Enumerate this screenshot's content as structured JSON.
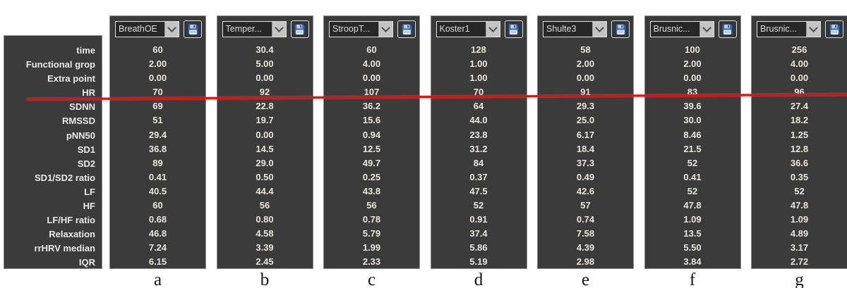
{
  "rows": [
    "time",
    "Functional grop",
    "Extra point",
    "HR",
    "SDNN",
    "RMSSD",
    "pNN50",
    "SD1",
    "SD2",
    "SD1/SD2 ratio",
    "LF",
    "HF",
    "LF/HF ratio",
    "Relaxation",
    "rrHRV median",
    "IQR"
  ],
  "columns": [
    {
      "letter": "a",
      "dropdown": "BreathOE",
      "values": [
        "60",
        "2.00",
        "0.00",
        "70",
        "69",
        "51",
        "29.4",
        "36.8",
        "89",
        "0.41",
        "40.5",
        "60",
        "0.68",
        "46.8",
        "7.24",
        "6.15"
      ]
    },
    {
      "letter": "b",
      "dropdown": "Temper...",
      "values": [
        "30.4",
        "5.00",
        "0.00",
        "92",
        "22.8",
        "19.7",
        "0.00",
        "14.5",
        "29.0",
        "0.50",
        "44.4",
        "56",
        "0.80",
        "4.58",
        "3.39",
        "2.45"
      ]
    },
    {
      "letter": "c",
      "dropdown": "StroopT...",
      "values": [
        "60",
        "4.00",
        "0.00",
        "107",
        "36.2",
        "15.6",
        "0.94",
        "12.5",
        "49.7",
        "0.25",
        "43.8",
        "56",
        "0.78",
        "5.79",
        "1.99",
        "2.33"
      ]
    },
    {
      "letter": "d",
      "dropdown": "Koster1",
      "values": [
        "128",
        "1.00",
        "1.00",
        "70",
        "64",
        "44.0",
        "23.8",
        "31.2",
        "84",
        "0.37",
        "47.5",
        "52",
        "0.91",
        "37.4",
        "5.86",
        "5.19"
      ]
    },
    {
      "letter": "e",
      "dropdown": "Shulte3",
      "values": [
        "58",
        "2.00",
        "0.00",
        "91",
        "29.3",
        "25.0",
        "6.17",
        "18.4",
        "37.3",
        "0.49",
        "42.6",
        "57",
        "0.74",
        "7.58",
        "4.39",
        "2.98"
      ]
    },
    {
      "letter": "f",
      "dropdown": "Brusnic...",
      "values": [
        "100",
        "2.00",
        "0.00",
        "83",
        "39.6",
        "30.0",
        "8.46",
        "21.5",
        "52",
        "0.41",
        "52",
        "47.8",
        "1.09",
        "13.5",
        "5.50",
        "3.84"
      ]
    },
    {
      "letter": "g",
      "dropdown": "Brusnic...",
      "values": [
        "256",
        "4.00",
        "0.00",
        "96",
        "27.4",
        "18.2",
        "1.25",
        "12.8",
        "36.6",
        "0.35",
        "52",
        "47.8",
        "1.09",
        "4.89",
        "3.17",
        "2.72"
      ]
    }
  ],
  "icons": {
    "save": "floppy-disk-icon",
    "dropdown_arrow": "chevron-down-icon"
  },
  "red_line": {
    "color": "#e01010",
    "through_row": "HR"
  },
  "colors": {
    "panel_bg": "#3b3b3b",
    "panel_border": "#8a8a8a",
    "value_text": "#ece4d9",
    "save_icon_blue": "#3a69ad"
  }
}
